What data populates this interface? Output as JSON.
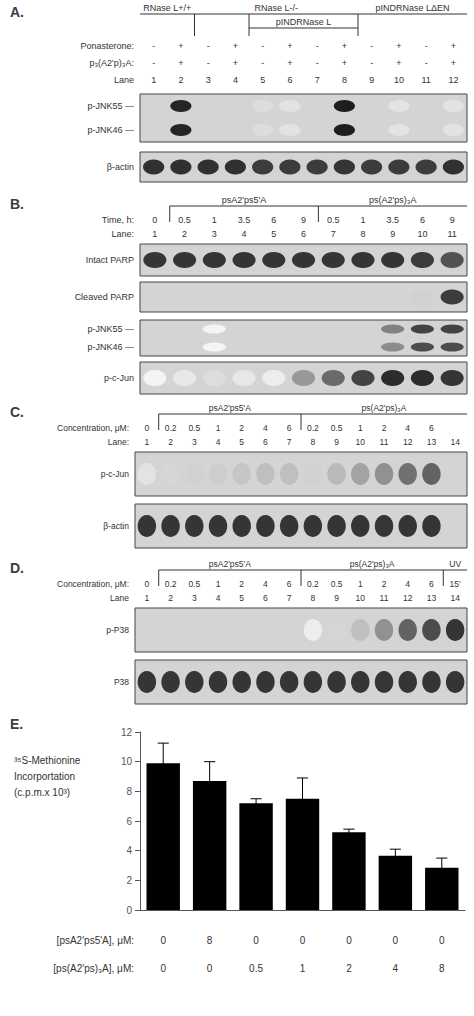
{
  "chart_data": [
    {
      "type": "blot",
      "title": "A.",
      "groups": [
        {
          "text": "RNase L+/+",
          "first_lane": "1",
          "last_lane": "2"
        },
        {
          "text": "RNase L-/-",
          "first_lane": "3",
          "last_lane": "8"
        },
        {
          "text": "pINDRNase L",
          "first_lane": "5",
          "last_lane": "8"
        },
        {
          "text": "pINDRNase LΔEN",
          "first_lane": "9",
          "last_lane": "12"
        }
      ],
      "label_rows": [
        {
          "label": "Ponasterone:",
          "values": [
            "-",
            "+",
            "-",
            "+",
            "-",
            "+",
            "-",
            "+",
            "-",
            "+",
            "-",
            "+"
          ]
        },
        {
          "label": "p₃(A2'p)₃A:",
          "values": [
            "-",
            "+",
            "-",
            "+",
            "-",
            "+",
            "-",
            "+",
            "-",
            "+",
            "-",
            "+"
          ]
        }
      ],
      "lane_label": "Lane",
      "lanes": [
        "1",
        "2",
        "3",
        "4",
        "5",
        "6",
        "7",
        "8",
        "9",
        "10",
        "11",
        "12"
      ],
      "blots": [
        {
          "rows": [
            {
              "label": "p-JNK55 —",
              "values": [
                0,
                0.95,
                0,
                0,
                0.15,
                0.12,
                0,
                0.98,
                0,
                0.12,
                0,
                0.12
              ]
            },
            {
              "label": "p-JNK46 —",
              "values": [
                0,
                0.95,
                0,
                0,
                0.15,
                0.12,
                0,
                0.98,
                0,
                0.12,
                0,
                0.12
              ]
            }
          ]
        },
        {
          "rows": [
            {
              "label": "β-actin",
              "values": [
                0.9,
                0.9,
                0.9,
                0.9,
                0.85,
                0.85,
                0.85,
                0.88,
                0.85,
                0.85,
                0.85,
                0.9
              ]
            }
          ]
        }
      ]
    },
    {
      "type": "blot",
      "title": "B.",
      "groups": [
        {
          "text": "psA2'ps5'A",
          "first_lane": "2",
          "last_lane": "6"
        },
        {
          "text": "ps(A2'ps)₃A",
          "first_lane": "7",
          "last_lane": "11"
        }
      ],
      "label_rows": [
        {
          "label": "Time, h:",
          "values": [
            "0",
            "0.5",
            "1",
            "3.5",
            "6",
            "9",
            "0.5",
            "1",
            "3.5",
            "6",
            "9"
          ]
        }
      ],
      "lane_label": "Lane:",
      "lanes": [
        "1",
        "2",
        "3",
        "4",
        "5",
        "6",
        "7",
        "8",
        "9",
        "10",
        "11"
      ],
      "blots": [
        {
          "rows": [
            {
              "label": "Intact PARP",
              "values": [
                0.88,
                0.88,
                0.88,
                0.88,
                0.88,
                0.88,
                0.88,
                0.88,
                0.88,
                0.85,
                0.75
              ]
            }
          ]
        },
        {
          "rows": [
            {
              "label": "Cleaved PARP",
              "values": [
                0,
                0,
                0,
                0,
                0,
                0,
                0,
                0,
                0,
                0.2,
                0.85
              ]
            }
          ]
        },
        {
          "rows": [
            {
              "label": "p-JNK55 —",
              "values": [
                0,
                0,
                0.05,
                0,
                0,
                0,
                0,
                0,
                0.55,
                0.82,
                0.82
              ]
            },
            {
              "label": "p-JNK46 —",
              "values": [
                0,
                0,
                0.05,
                0,
                0,
                0,
                0,
                0,
                0.5,
                0.78,
                0.78
              ]
            }
          ]
        },
        {
          "rows": [
            {
              "label": "p-c-Jun",
              "values": [
                0.05,
                0.1,
                0.15,
                0.1,
                0.08,
                0.45,
                0.65,
                0.82,
                0.92,
                0.92,
                0.88
              ]
            }
          ]
        }
      ]
    },
    {
      "type": "blot",
      "title": "C.",
      "groups": [
        {
          "text": "psA2'ps5'A",
          "first_lane": "2",
          "last_lane": "7"
        },
        {
          "text": "ps(A2'ps)₃A",
          "first_lane": "8",
          "last_lane": "14"
        }
      ],
      "label_rows": [
        {
          "label": "Concentration, μM:",
          "values": [
            "0",
            "0.2",
            "0.5",
            "1",
            "2",
            "4",
            "6",
            "0.2",
            "0.5",
            "1",
            "2",
            "4",
            "6",
            null
          ]
        }
      ],
      "lane_label": "Lane:",
      "lanes": [
        "1",
        "2",
        "3",
        "4",
        "5",
        "6",
        "7",
        "8",
        "9",
        "10",
        "11",
        "12",
        "13",
        "14"
      ],
      "blots": [
        {
          "rows": [
            {
              "label": "p-c-Jun",
              "values": [
                0.12,
                0.18,
                0.2,
                0.22,
                0.25,
                0.28,
                0.28,
                0.2,
                0.3,
                0.4,
                0.48,
                0.62,
                0.68,
                0
              ]
            }
          ]
        },
        {
          "rows": [
            {
              "label": "β-actin",
              "values": [
                0.88,
                0.88,
                0.88,
                0.88,
                0.88,
                0.88,
                0.88,
                0.88,
                0.88,
                0.88,
                0.88,
                0.88,
                0.88,
                0
              ]
            }
          ]
        }
      ]
    },
    {
      "type": "blot",
      "title": "D.",
      "groups": [
        {
          "text": "psA2'ps5'A",
          "first_lane": "2",
          "last_lane": "7"
        },
        {
          "text": "ps(A2'ps)₃A",
          "first_lane": "8",
          "last_lane": "13"
        },
        {
          "text": "UV",
          "first_lane": "14",
          "last_lane": "14"
        }
      ],
      "label_rows": [
        {
          "label": "Concentration, μM:",
          "values": [
            "0",
            "0.2",
            "0.5",
            "1",
            "2",
            "4",
            "6",
            "0.2",
            "0.5",
            "1",
            "2",
            "4",
            "6",
            "15'"
          ]
        }
      ],
      "lane_label": "Lane",
      "lanes": [
        "1",
        "2",
        "3",
        "4",
        "5",
        "6",
        "7",
        "8",
        "9",
        "10",
        "11",
        "12",
        "13",
        "14"
      ],
      "blots": [
        {
          "rows": [
            {
              "label": "p-P38",
              "values": [
                0,
                0,
                0,
                0,
                0,
                0,
                0,
                0.08,
                0.18,
                0.28,
                0.48,
                0.68,
                0.78,
                0.88
              ]
            }
          ]
        },
        {
          "rows": [
            {
              "label": "P38",
              "values": [
                0.88,
                0.88,
                0.88,
                0.88,
                0.88,
                0.88,
                0.88,
                0.88,
                0.88,
                0.88,
                0.88,
                0.88,
                0.88,
                0.88
              ]
            }
          ]
        }
      ]
    },
    {
      "type": "bar",
      "title": "E.",
      "ylabel": "³⁵S-Methionine\nIncorportation\n(c.p.m.x 10³)",
      "values": [
        9.9,
        8.7,
        7.2,
        7.5,
        5.25,
        3.65,
        2.85
      ],
      "errors": [
        1.35,
        1.3,
        0.3,
        1.4,
        0.2,
        0.45,
        0.65
      ],
      "color": "#000000",
      "ylim": [
        0,
        12
      ],
      "yticks": [
        0,
        2,
        4,
        6,
        8,
        10,
        12
      ],
      "grid": false,
      "label_rows": [
        {
          "label": "[psA2'ps5'A], μM:",
          "values": [
            "0",
            "8",
            "0",
            "0",
            "0",
            "0",
            "0"
          ]
        },
        {
          "label": "[ps(A2'ps)₃A], μM:",
          "values": [
            "0",
            "0",
            "0.5",
            "1",
            "2",
            "4",
            "8"
          ]
        }
      ]
    }
  ]
}
